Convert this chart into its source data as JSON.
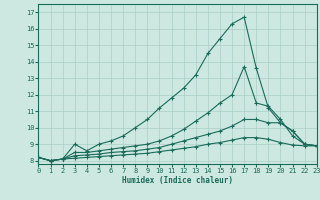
{
  "xlabel": "Humidex (Indice chaleur)",
  "bg_color": "#cce8e0",
  "grid_color": "#aacfc8",
  "line_color": "#1a6b5a",
  "xlim": [
    0,
    23
  ],
  "ylim": [
    7.8,
    17.5
  ],
  "xticks": [
    0,
    1,
    2,
    3,
    4,
    5,
    6,
    7,
    8,
    9,
    10,
    11,
    12,
    13,
    14,
    15,
    16,
    17,
    18,
    19,
    20,
    21,
    22,
    23
  ],
  "yticks": [
    8,
    9,
    10,
    11,
    12,
    13,
    14,
    15,
    16,
    17
  ],
  "series": [
    {
      "x": [
        0,
        1,
        2,
        3,
        4,
        5,
        6,
        7,
        8,
        9,
        10,
        11,
        12,
        13,
        14,
        15,
        16,
        17,
        18,
        19,
        20,
        21,
        22,
        23
      ],
      "y": [
        8.2,
        8.0,
        8.1,
        9.0,
        8.6,
        9.0,
        9.2,
        9.5,
        10.0,
        10.5,
        11.2,
        11.8,
        12.4,
        13.2,
        14.5,
        15.4,
        16.3,
        16.7,
        13.6,
        11.2,
        10.3,
        9.8,
        9.0,
        8.9
      ]
    },
    {
      "x": [
        0,
        1,
        2,
        3,
        4,
        5,
        6,
        7,
        8,
        9,
        10,
        11,
        12,
        13,
        14,
        15,
        16,
        17,
        18,
        19,
        20,
        21,
        22,
        23
      ],
      "y": [
        8.2,
        8.0,
        8.1,
        8.5,
        8.5,
        8.6,
        8.7,
        8.8,
        8.9,
        9.0,
        9.2,
        9.5,
        9.9,
        10.4,
        10.9,
        11.5,
        12.0,
        13.7,
        11.5,
        11.3,
        10.5,
        9.5,
        9.0,
        8.9
      ]
    },
    {
      "x": [
        0,
        1,
        2,
        3,
        4,
        5,
        6,
        7,
        8,
        9,
        10,
        11,
        12,
        13,
        14,
        15,
        16,
        17,
        18,
        19,
        20,
        21,
        22,
        23
      ],
      "y": [
        8.2,
        8.0,
        8.1,
        8.3,
        8.35,
        8.4,
        8.5,
        8.55,
        8.6,
        8.7,
        8.8,
        9.0,
        9.2,
        9.4,
        9.6,
        9.8,
        10.1,
        10.5,
        10.5,
        10.3,
        10.3,
        9.8,
        9.0,
        8.9
      ]
    },
    {
      "x": [
        0,
        1,
        2,
        3,
        4,
        5,
        6,
        7,
        8,
        9,
        10,
        11,
        12,
        13,
        14,
        15,
        16,
        17,
        18,
        19,
        20,
        21,
        22,
        23
      ],
      "y": [
        8.2,
        8.0,
        8.1,
        8.15,
        8.2,
        8.25,
        8.3,
        8.35,
        8.4,
        8.45,
        8.55,
        8.65,
        8.75,
        8.85,
        9.0,
        9.1,
        9.25,
        9.4,
        9.4,
        9.3,
        9.1,
        8.95,
        8.9,
        8.9
      ]
    }
  ]
}
